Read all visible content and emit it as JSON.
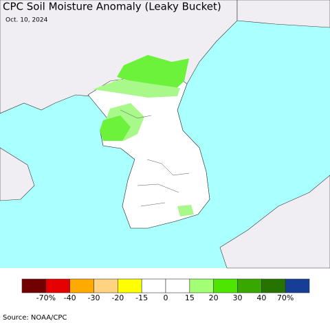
{
  "title": "CPC Soil Moisture Anomaly (Leaky Bucket)",
  "date": "Oct. 10, 2024",
  "legend": {
    "colors": [
      "#730000",
      "#e60000",
      "#ffaa00",
      "#ffd37f",
      "#ffff00",
      "#ffffff",
      "#ffffff",
      "#a3ff73",
      "#4ce600",
      "#38a800",
      "#267300",
      "#163e96"
    ],
    "labels": [
      "-70%",
      "-40",
      "-30",
      "-20",
      "-15",
      "0",
      "15",
      "20",
      "30",
      "40",
      "70%"
    ]
  },
  "source": "Source: NOAA/CPC"
}
